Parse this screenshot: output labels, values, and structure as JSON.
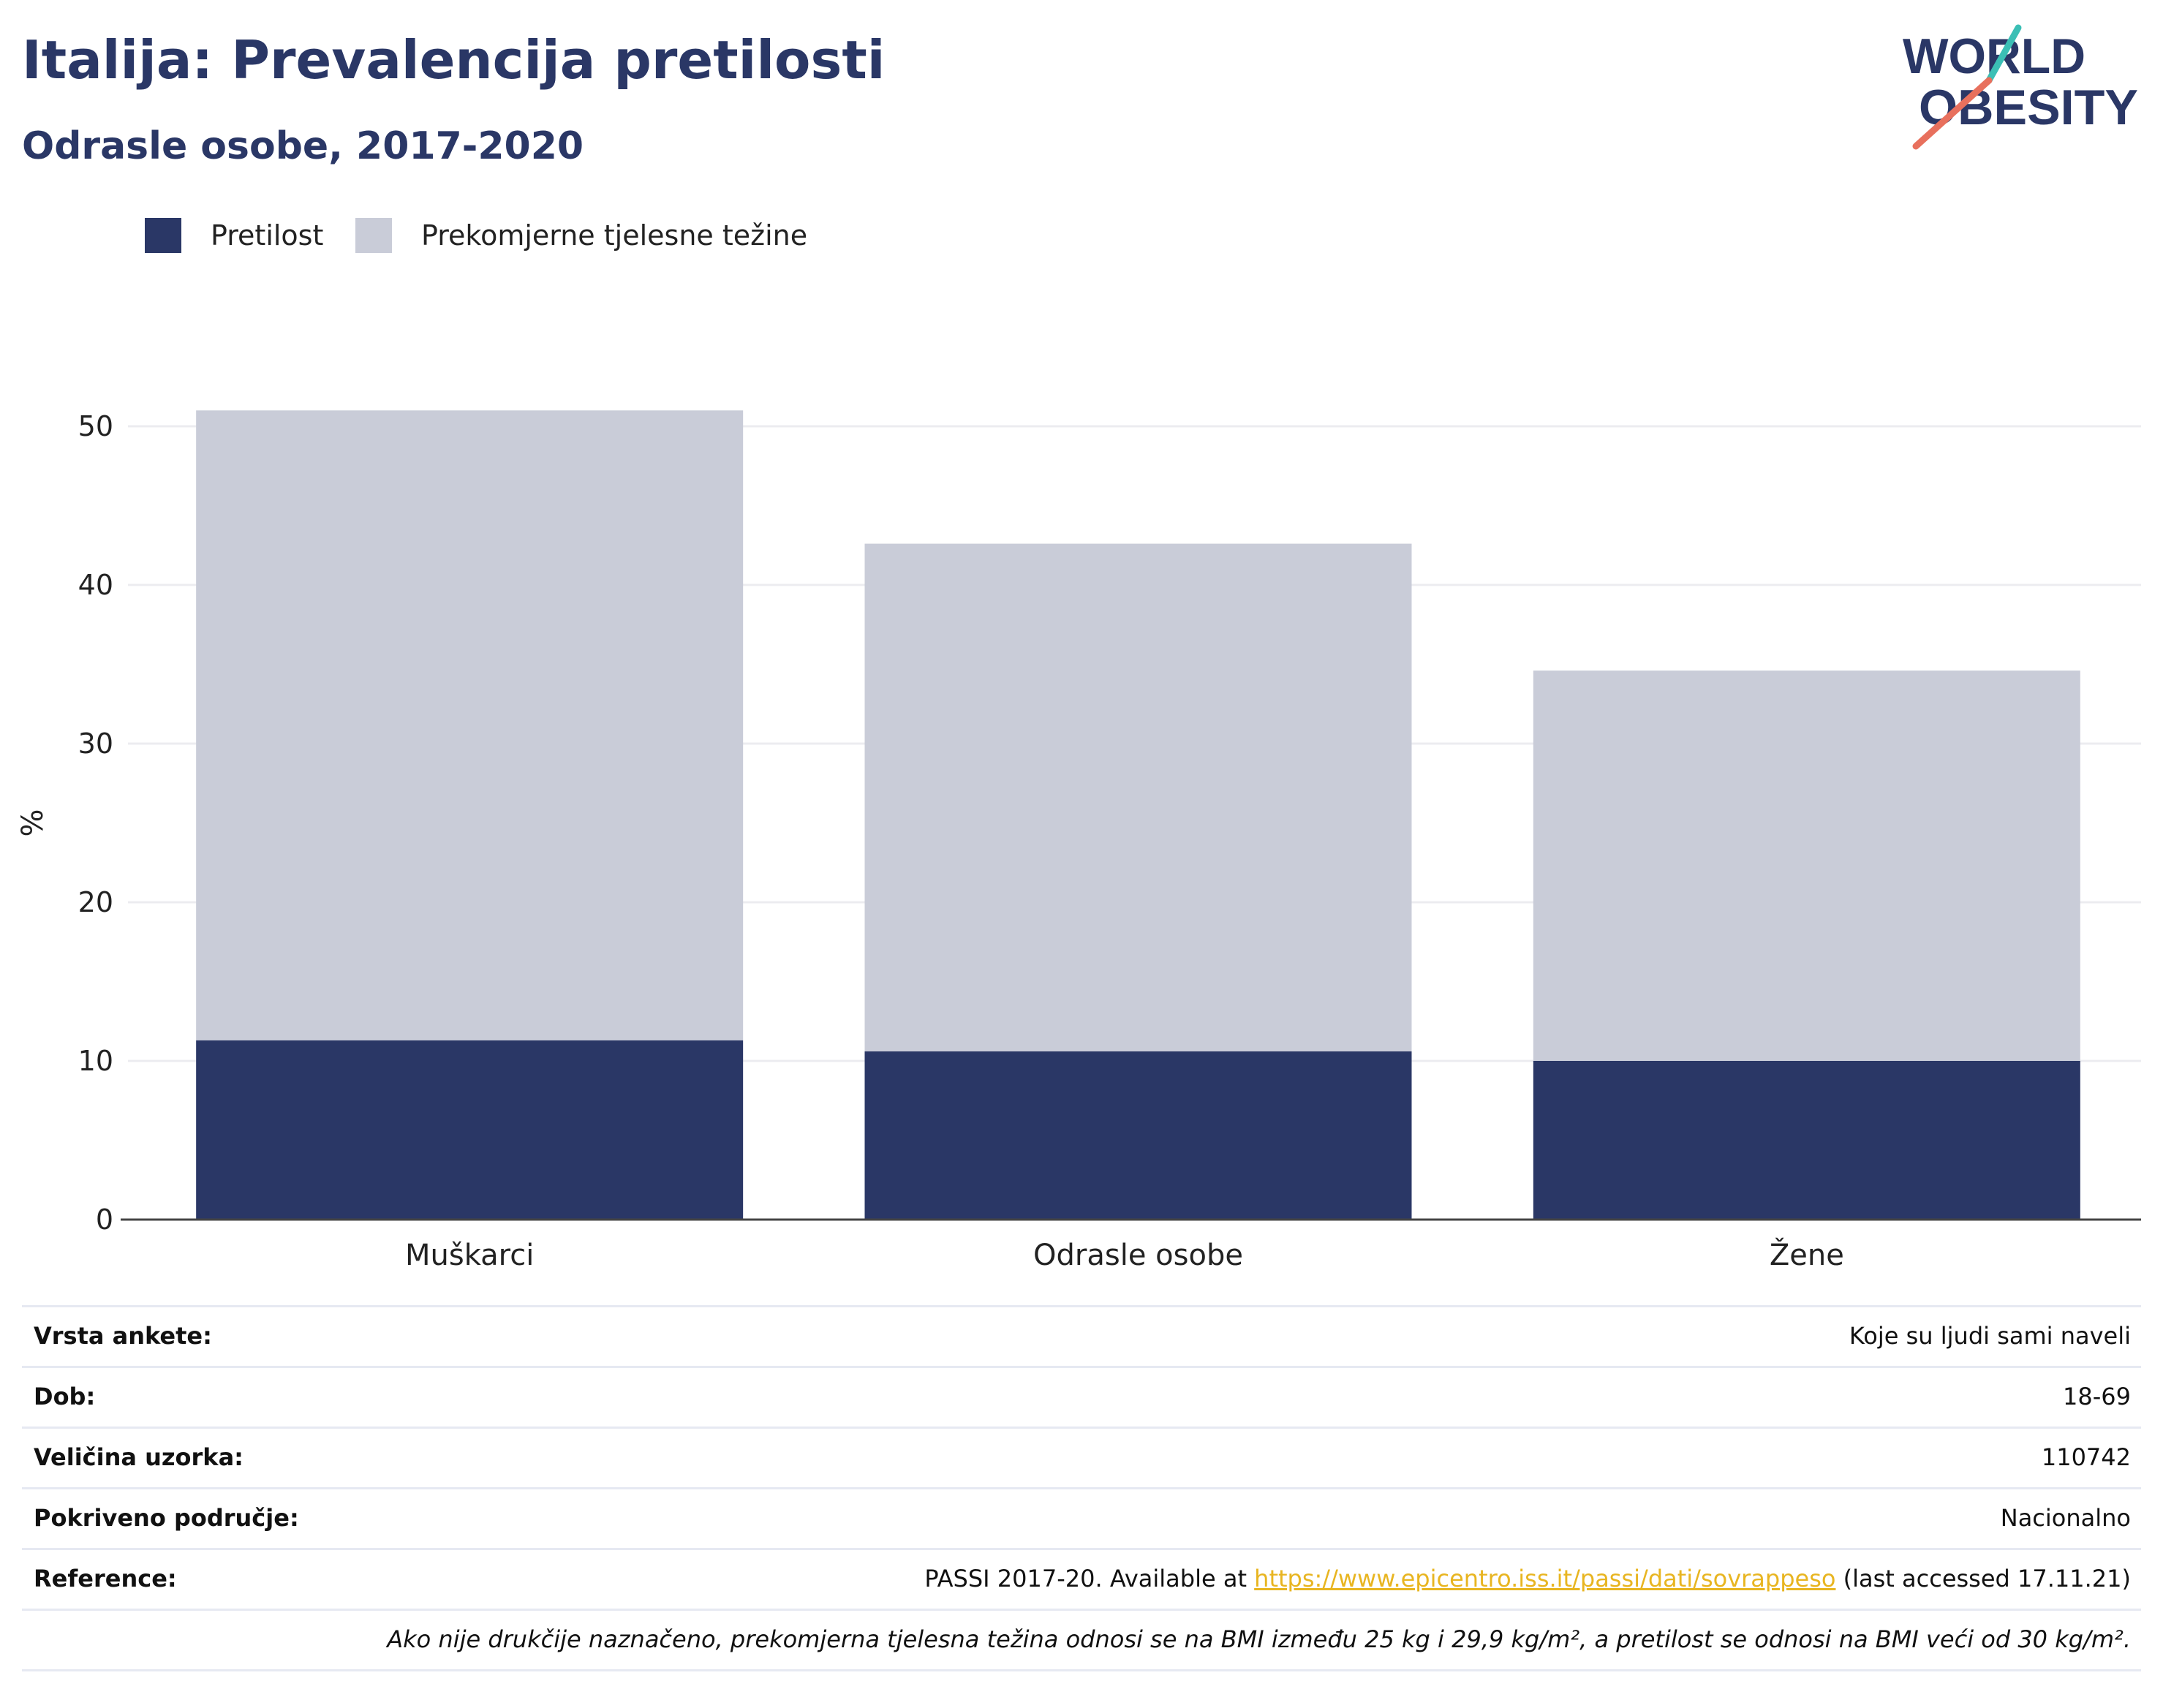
{
  "header": {
    "title": "Italija: Prevalencija pretilosti",
    "subtitle": "Odrasle osobe, 2017-2020"
  },
  "logo": {
    "line1": "WORLD",
    "line2": "OBESITY",
    "icon": "world-obesity-logo-icon",
    "colors": {
      "text": "#2a3766",
      "accent_teal": "#3bbfb5",
      "accent_coral": "#e8705d"
    }
  },
  "legend": {
    "items": [
      {
        "label": "Pretilost",
        "color": "#2a3766"
      },
      {
        "label": "Prekomjerne tjelesne težine",
        "color": "#c9ccd8"
      }
    ]
  },
  "chart_data": {
    "type": "bar",
    "stacked": true,
    "categories": [
      "Muškarci",
      "Odrasle osobe",
      "Žene"
    ],
    "series": [
      {
        "name": "Pretilost",
        "values": [
          11.3,
          10.6,
          10.0
        ],
        "color": "#2a3766"
      },
      {
        "name": "Prekomjerne tjelesne težine",
        "values": [
          39.7,
          32.0,
          24.6
        ],
        "color": "#c9ccd8"
      }
    ],
    "ylabel": "%",
    "xlabel": "",
    "ylim": [
      0,
      50
    ],
    "yticks": [
      0,
      10,
      20,
      30,
      40,
      50
    ],
    "grid": true,
    "legend_position": "top-left"
  },
  "meta": {
    "rows": [
      {
        "key": "Vrsta ankete:",
        "value": "Koje su ljudi sami naveli"
      },
      {
        "key": "Dob:",
        "value": "18-69"
      },
      {
        "key": "Veličina uzorka:",
        "value": "110742"
      },
      {
        "key": "Pokriveno područje:",
        "value": "Nacionalno"
      }
    ],
    "reference": {
      "key": "Reference:",
      "prefix": "PASSI 2017-20. Available at ",
      "link": "https://www.epicentro.iss.it/passi/dati/sovrappeso",
      "suffix": " (last accessed 17.11.21)"
    },
    "footnote": "Ako nije drukčije naznačeno, prekomjerna tjelesna težina odnosi se na BMI između 25 kg i 29,9 kg/m², a pretilost se odnosi na BMI veći od 30 kg/m²."
  }
}
